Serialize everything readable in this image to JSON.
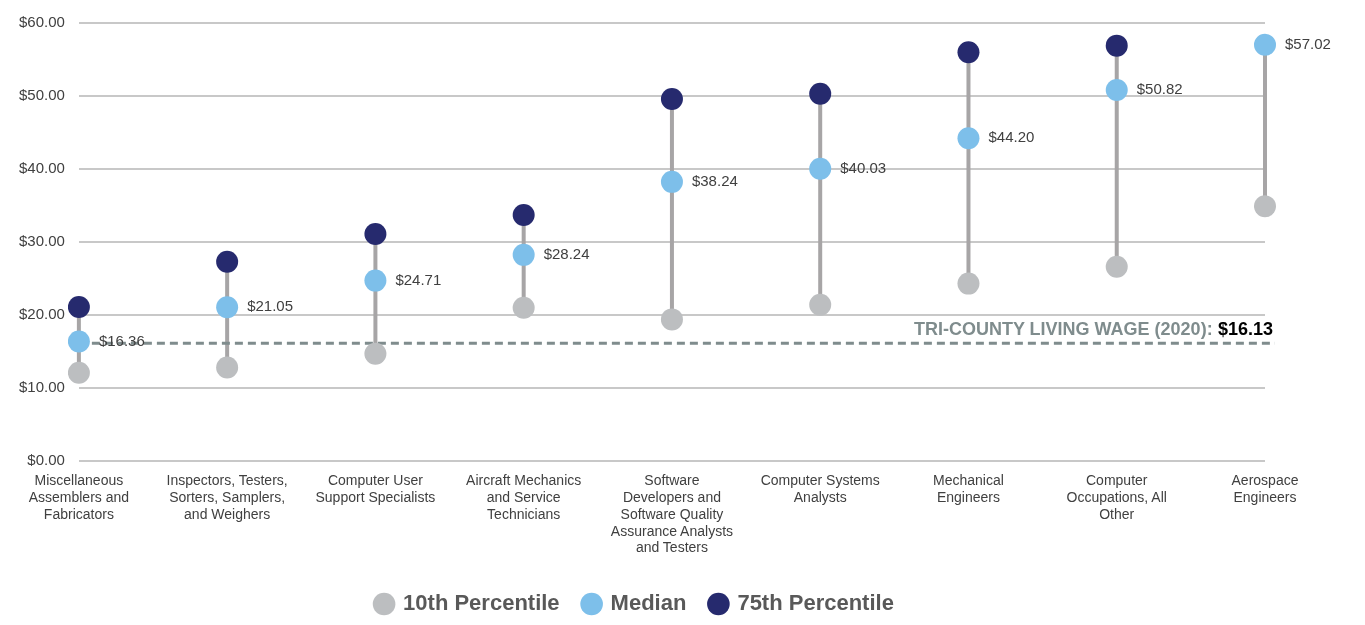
{
  "chart_data": {
    "type": "scatter",
    "categories": [
      "Miscellaneous Assemblers and Fabricators",
      "Inspectors, Testers, Sorters, Samplers, and Weighers",
      "Computer User Support Specialists",
      "Aircraft Mechanics and Service Technicians",
      "Software Developers and Software Quality Assurance Analysts and Testers",
      "Computer Systems Analysts",
      "Mechanical Engineers",
      "Computer Occupations, All Other",
      "Aerospace Engineers"
    ],
    "series": [
      {
        "name": "10th Percentile",
        "color": "#bcbec0",
        "values": [
          12.1,
          12.8,
          14.7,
          21.0,
          19.4,
          21.4,
          24.3,
          26.6,
          34.9
        ]
      },
      {
        "name": "Median",
        "color": "#7dbfea",
        "values": [
          16.36,
          21.05,
          24.71,
          28.24,
          38.24,
          40.03,
          44.2,
          50.82,
          57.02
        ],
        "value_labels": [
          "$16.36",
          "$21.05",
          "$24.71",
          "$28.24",
          "$38.24",
          "$40.03",
          "$44.20",
          "$50.82",
          "$57.02"
        ]
      },
      {
        "name": "75th Percentile",
        "color": "#262a6e",
        "values": [
          21.1,
          27.3,
          31.1,
          33.7,
          49.6,
          50.3,
          56.0,
          56.9,
          null
        ]
      }
    ],
    "ylim": [
      0,
      60
    ],
    "yticks": [
      {
        "value": 0,
        "label": "$0.00"
      },
      {
        "value": 10,
        "label": "$10.00"
      },
      {
        "value": 20,
        "label": "$20.00"
      },
      {
        "value": 30,
        "label": "$30.00"
      },
      {
        "value": 40,
        "label": "$40.00"
      },
      {
        "value": 50,
        "label": "$50.00"
      },
      {
        "value": 60,
        "label": "$60.00"
      }
    ],
    "grid": "y",
    "marker": "circle",
    "legend": "bottom",
    "ref_lines": [
      {
        "axis": "y",
        "value": 16.13,
        "label": "TRI-COUNTY LIVING WAGE (2020): $16.13",
        "color": "#7f8c8d",
        "line_style": "dashed"
      }
    ]
  }
}
